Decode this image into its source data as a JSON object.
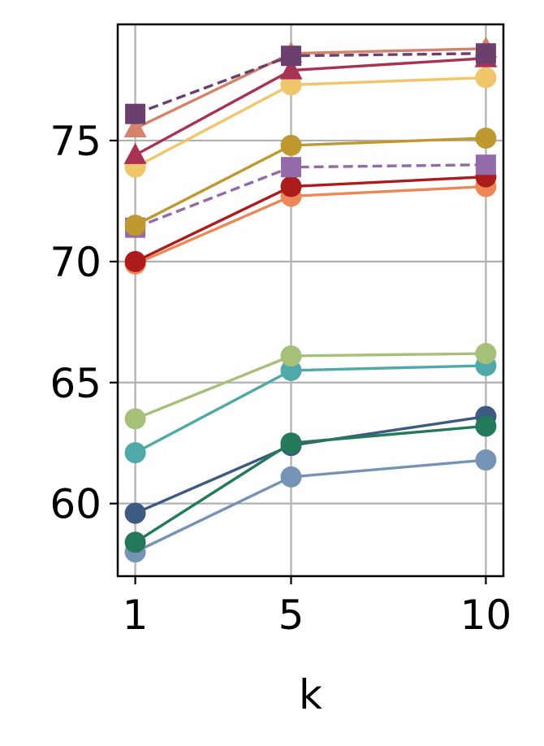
{
  "chart_data": {
    "type": "line",
    "xlabel": "k",
    "ylabel": "",
    "title": "",
    "x": [
      1,
      5,
      10
    ],
    "x_tick_labels": [
      "1",
      "5",
      "10"
    ],
    "y_ticks": [
      60,
      65,
      70,
      75
    ],
    "y_tick_labels": [
      "60",
      "65",
      "70",
      "75"
    ],
    "xlim": [
      0.55,
      10.45
    ],
    "ylim": [
      57.0,
      79.8
    ],
    "grid": true,
    "legend": "none",
    "series": [
      {
        "values": [
          76.1,
          78.5,
          78.6
        ],
        "color": "#6b3f6e",
        "marker": "square",
        "dashed": true
      },
      {
        "values": [
          75.5,
          78.6,
          78.8
        ],
        "color": "#d4826a",
        "marker": "triangle",
        "dashed": false
      },
      {
        "values": [
          74.4,
          77.9,
          78.4
        ],
        "color": "#a83252",
        "marker": "triangle",
        "dashed": false
      },
      {
        "values": [
          73.9,
          77.3,
          77.6
        ],
        "color": "#efc66b",
        "marker": "circle",
        "dashed": false
      },
      {
        "values": [
          71.5,
          74.8,
          75.1
        ],
        "color": "#c09830",
        "marker": "circle",
        "dashed": false
      },
      {
        "values": [
          71.4,
          73.9,
          74.0
        ],
        "color": "#936ba8",
        "marker": "square",
        "dashed": true
      },
      {
        "values": [
          70.0,
          73.1,
          73.5
        ],
        "color": "#ad1c1c",
        "marker": "circle",
        "dashed": false
      },
      {
        "values": [
          69.9,
          72.7,
          73.1
        ],
        "color": "#ec8757",
        "marker": "circle",
        "dashed": false
      },
      {
        "values": [
          63.5,
          66.1,
          66.2
        ],
        "color": "#a7c079",
        "marker": "circle",
        "dashed": false
      },
      {
        "values": [
          62.1,
          65.5,
          65.7
        ],
        "color": "#4fa9a8",
        "marker": "circle",
        "dashed": false
      },
      {
        "values": [
          58.4,
          62.5,
          63.2
        ],
        "color": "#227a5a",
        "marker": "circle",
        "dashed": false
      },
      {
        "values": [
          59.6,
          62.4,
          63.6
        ],
        "color": "#3d5a82",
        "marker": "circle",
        "dashed": false
      },
      {
        "values": [
          58.0,
          61.1,
          61.8
        ],
        "color": "#7593b5",
        "marker": "circle",
        "dashed": false
      }
    ]
  }
}
